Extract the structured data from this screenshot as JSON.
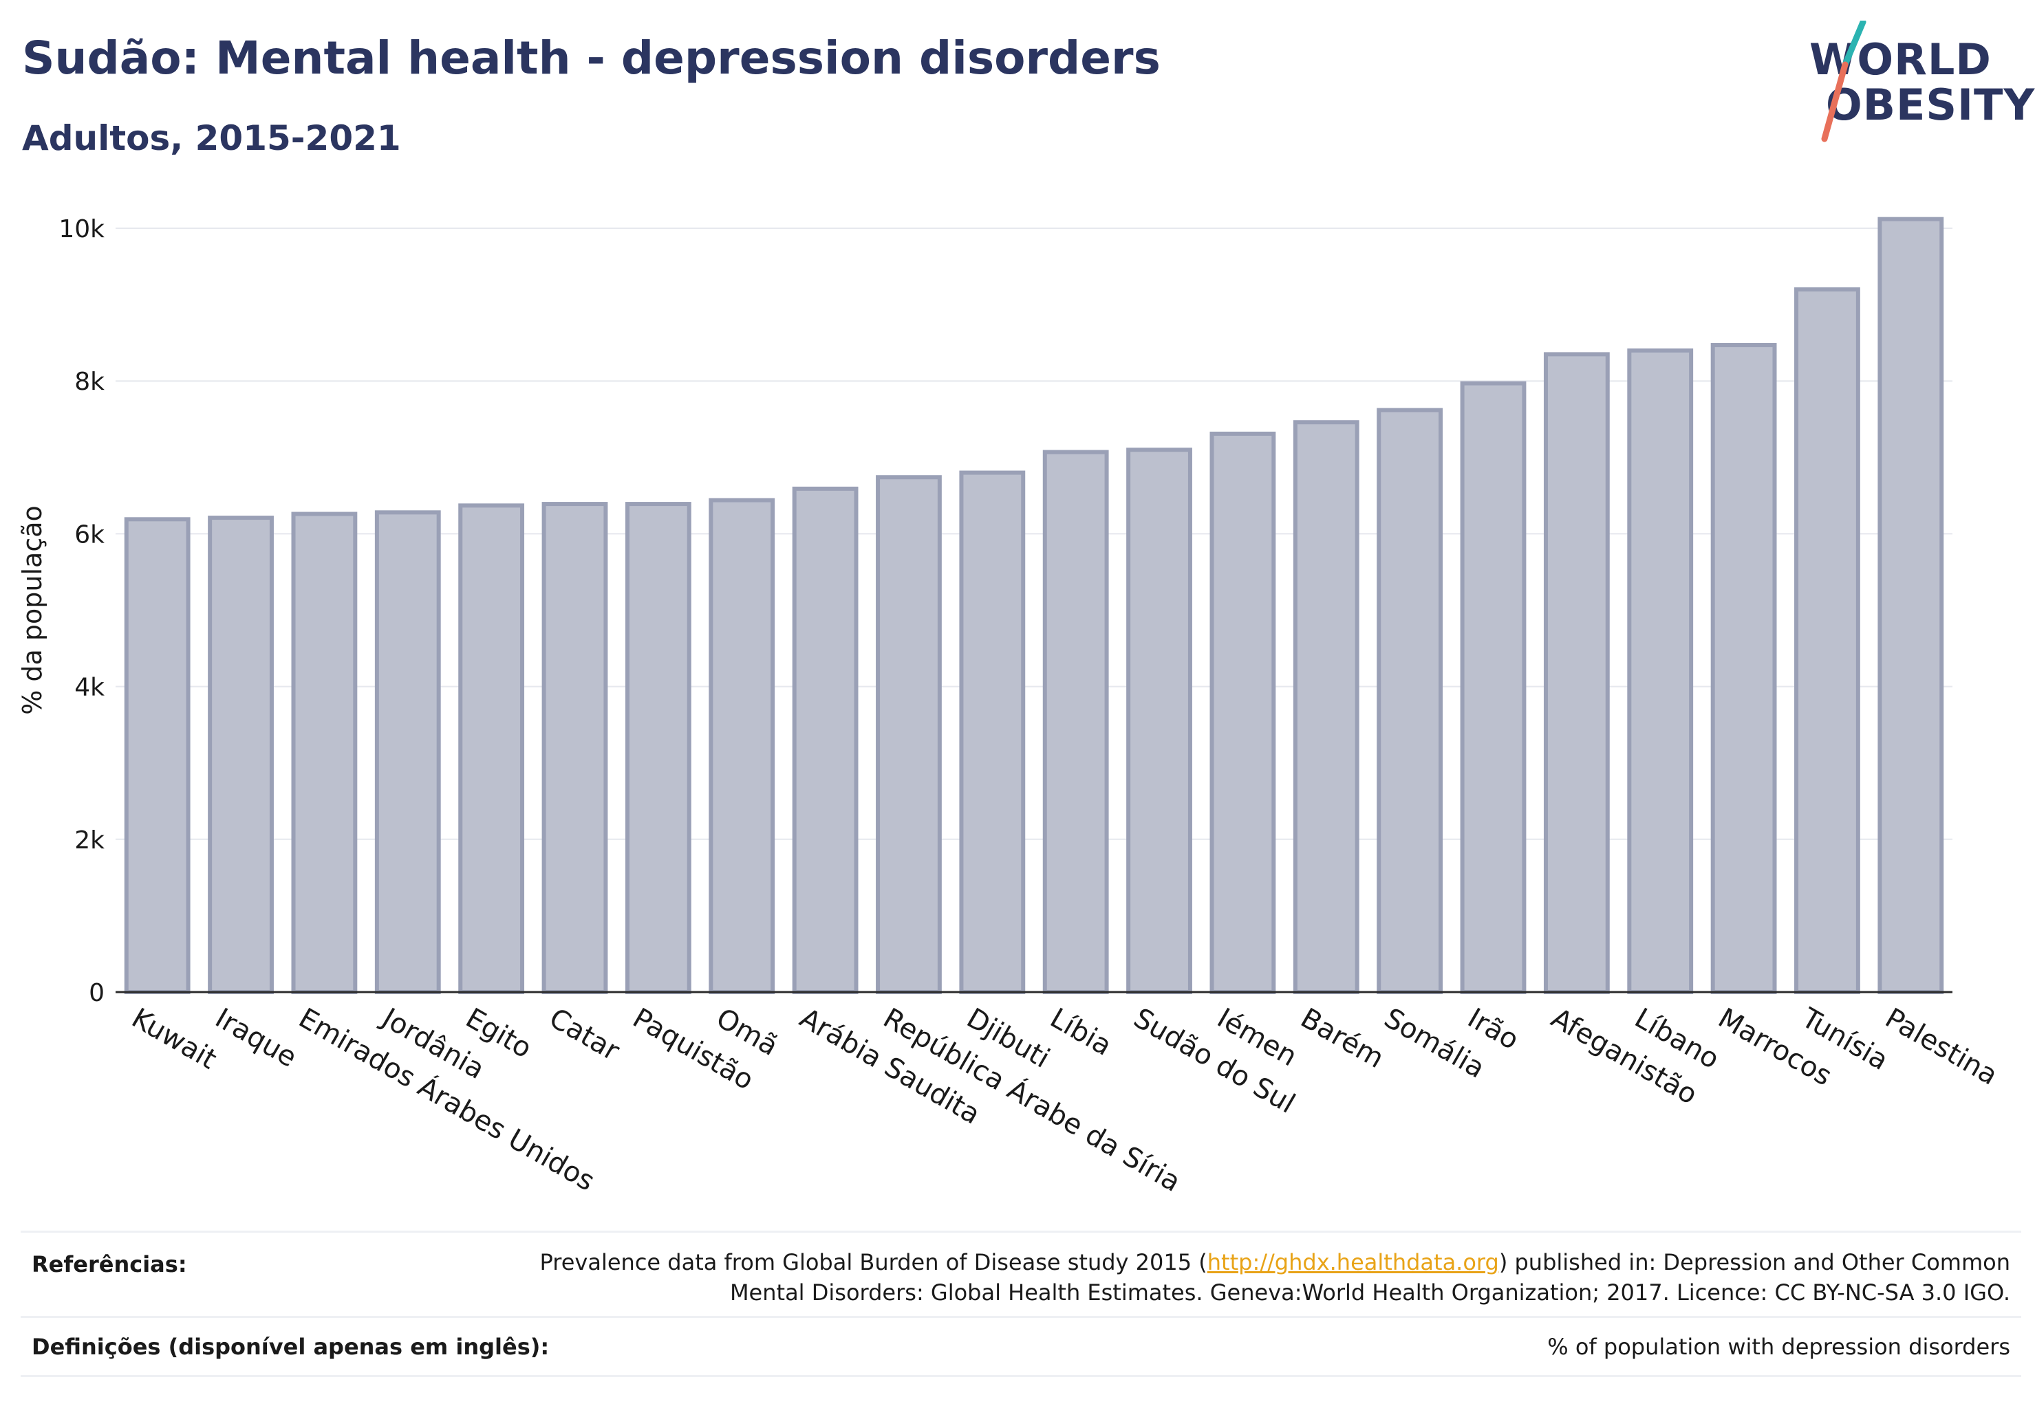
{
  "header": {
    "title": "Sudão: Mental health - depression disorders",
    "subtitle": "Adultos, 2015-2021"
  },
  "logo": {
    "line1": "WORLD",
    "line2": "OBESITY"
  },
  "chart_data": {
    "type": "bar",
    "ylabel": "% da população",
    "xlabel": "",
    "ylim": [
      0,
      10000
    ],
    "yticks": [
      {
        "value": 0,
        "label": "0"
      },
      {
        "value": 2000,
        "label": "2k"
      },
      {
        "value": 4000,
        "label": "4k"
      },
      {
        "value": 6000,
        "label": "6k"
      },
      {
        "value": 8000,
        "label": "8k"
      },
      {
        "value": 10000,
        "label": "10k"
      }
    ],
    "grid": true,
    "bar_color": "#bcc0ce",
    "bar_edge_color": "#9aa0b6",
    "categories": [
      "Kuwait",
      "Iraque",
      "Emirados Árabes Unidos",
      "Jordânia",
      "Egito",
      "Catar",
      "Paquistão",
      "Omã",
      "Arábia Saudita",
      "República Árabe da Síria",
      "Djibuti",
      "Líbia",
      "Sudão do Sul",
      "Iémen",
      "Barém",
      "Somália",
      "Irão",
      "Afeganistão",
      "Líbano",
      "Marrocos",
      "Tunísia",
      "Palestina"
    ],
    "values": [
      6190,
      6210,
      6260,
      6280,
      6370,
      6390,
      6390,
      6440,
      6590,
      6740,
      6800,
      7070,
      7100,
      7310,
      7460,
      7620,
      7970,
      8350,
      8400,
      8470,
      9200,
      10120
    ]
  },
  "references": {
    "label": "Referências:",
    "text_before_link": "Prevalence data from Global Burden of Disease study 2015 (",
    "link": "http://ghdx.healthdata.org",
    "text_after_link": ") published in: Depression and Other Common",
    "line2": "Mental Disorders: Global Health Estimates. Geneva:World Health Organization; 2017. Licence: CC BY-NC-SA 3.0 IGO."
  },
  "definitions": {
    "label": "Definições (disponível apenas em inglês):",
    "text": "% of population with depression disorders"
  }
}
